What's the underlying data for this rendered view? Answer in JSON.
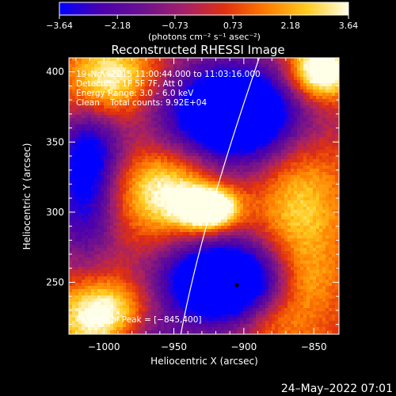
{
  "chart_data": {
    "type": "heatmap",
    "title": "Reconstructed RHESSI Image",
    "xlabel": "Heliocentric X (arcsec)",
    "ylabel": "Heliocentric Y (arcsec)",
    "xlim": [
      -1025,
      -832
    ],
    "ylim": [
      213,
      410
    ],
    "x_ticks": [
      -1000,
      -950,
      -900,
      -850
    ],
    "x_tick_labels": [
      "−1000",
      "−950",
      "−900",
      "−850"
    ],
    "y_ticks": [
      250,
      300,
      350,
      400
    ],
    "y_tick_labels": [
      "250",
      "300",
      "350",
      "400"
    ],
    "colorbar": {
      "min": -3.64,
      "max": 3.64,
      "ticks": [
        -3.64,
        -2.18,
        -0.73,
        0.73,
        2.18,
        3.64
      ],
      "tick_labels": [
        "−3.64",
        "−2.18",
        "−0.73",
        "0.73",
        "2.18",
        "3.64"
      ],
      "colors": [
        "#0000ff",
        "#4b00ae",
        "#6b1090",
        "#a3206a",
        "#e03010",
        "#ff7c00",
        "#ffcc20",
        "#ffffe8"
      ],
      "unit_text": "(photons cm⁻² s⁻¹ asec⁻²)"
    },
    "annotations": {
      "time": "19–Nov–2015 11:00:44.000 to 11:03:16.000",
      "detectors": "Detectors: 1F 5F 7F, Att 0",
      "energy": "Energy Range: 3.0 – 6.0 keV",
      "clean": "Clean    Total counts: 9.92E+04",
      "peak": "Position of Peak = [−845,400]"
    },
    "peak": [
      -845,
      400
    ],
    "blobs": [
      {
        "x": -925,
        "y": 302,
        "amp": 6.0,
        "sx": 14,
        "sy": 10
      },
      {
        "x": -955,
        "y": 315,
        "amp": 3.5,
        "sx": 25,
        "sy": 22
      },
      {
        "x": -1000,
        "y": 225,
        "amp": 4.5,
        "sx": 22,
        "sy": 18
      },
      {
        "x": -993,
        "y": 395,
        "amp": 3.4,
        "sx": 22,
        "sy": 18
      },
      {
        "x": -860,
        "y": 300,
        "amp": 2.5,
        "sx": 22,
        "sy": 55
      },
      {
        "x": -845,
        "y": 400,
        "amp": 5.2,
        "sx": 16,
        "sy": 14
      },
      {
        "x": -905,
        "y": 370,
        "amp": -7.5,
        "sx": 38,
        "sy": 26
      },
      {
        "x": -915,
        "y": 250,
        "amp": -7.5,
        "sx": 32,
        "sy": 22
      },
      {
        "x": -1015,
        "y": 305,
        "amp": -3.5,
        "sx": 18,
        "sy": 30
      },
      {
        "x": -1010,
        "y": 345,
        "amp": -3.2,
        "sx": 16,
        "sy": 20
      },
      {
        "x": -975,
        "y": 210,
        "amp": -2.5,
        "sx": 22,
        "sy": 14
      },
      {
        "x": -880,
        "y": 225,
        "amp": 1.5,
        "sx": 18,
        "sy": 14
      },
      {
        "x": -855,
        "y": 250,
        "amp": 1.0,
        "sx": 14,
        "sy": 14
      }
    ],
    "limb_curve": [
      [
        -945,
        213
      ],
      [
        -924,
        300
      ],
      [
        -889,
        410
      ]
    ]
  },
  "footer": {
    "date": "24–May–2022 07:01"
  }
}
